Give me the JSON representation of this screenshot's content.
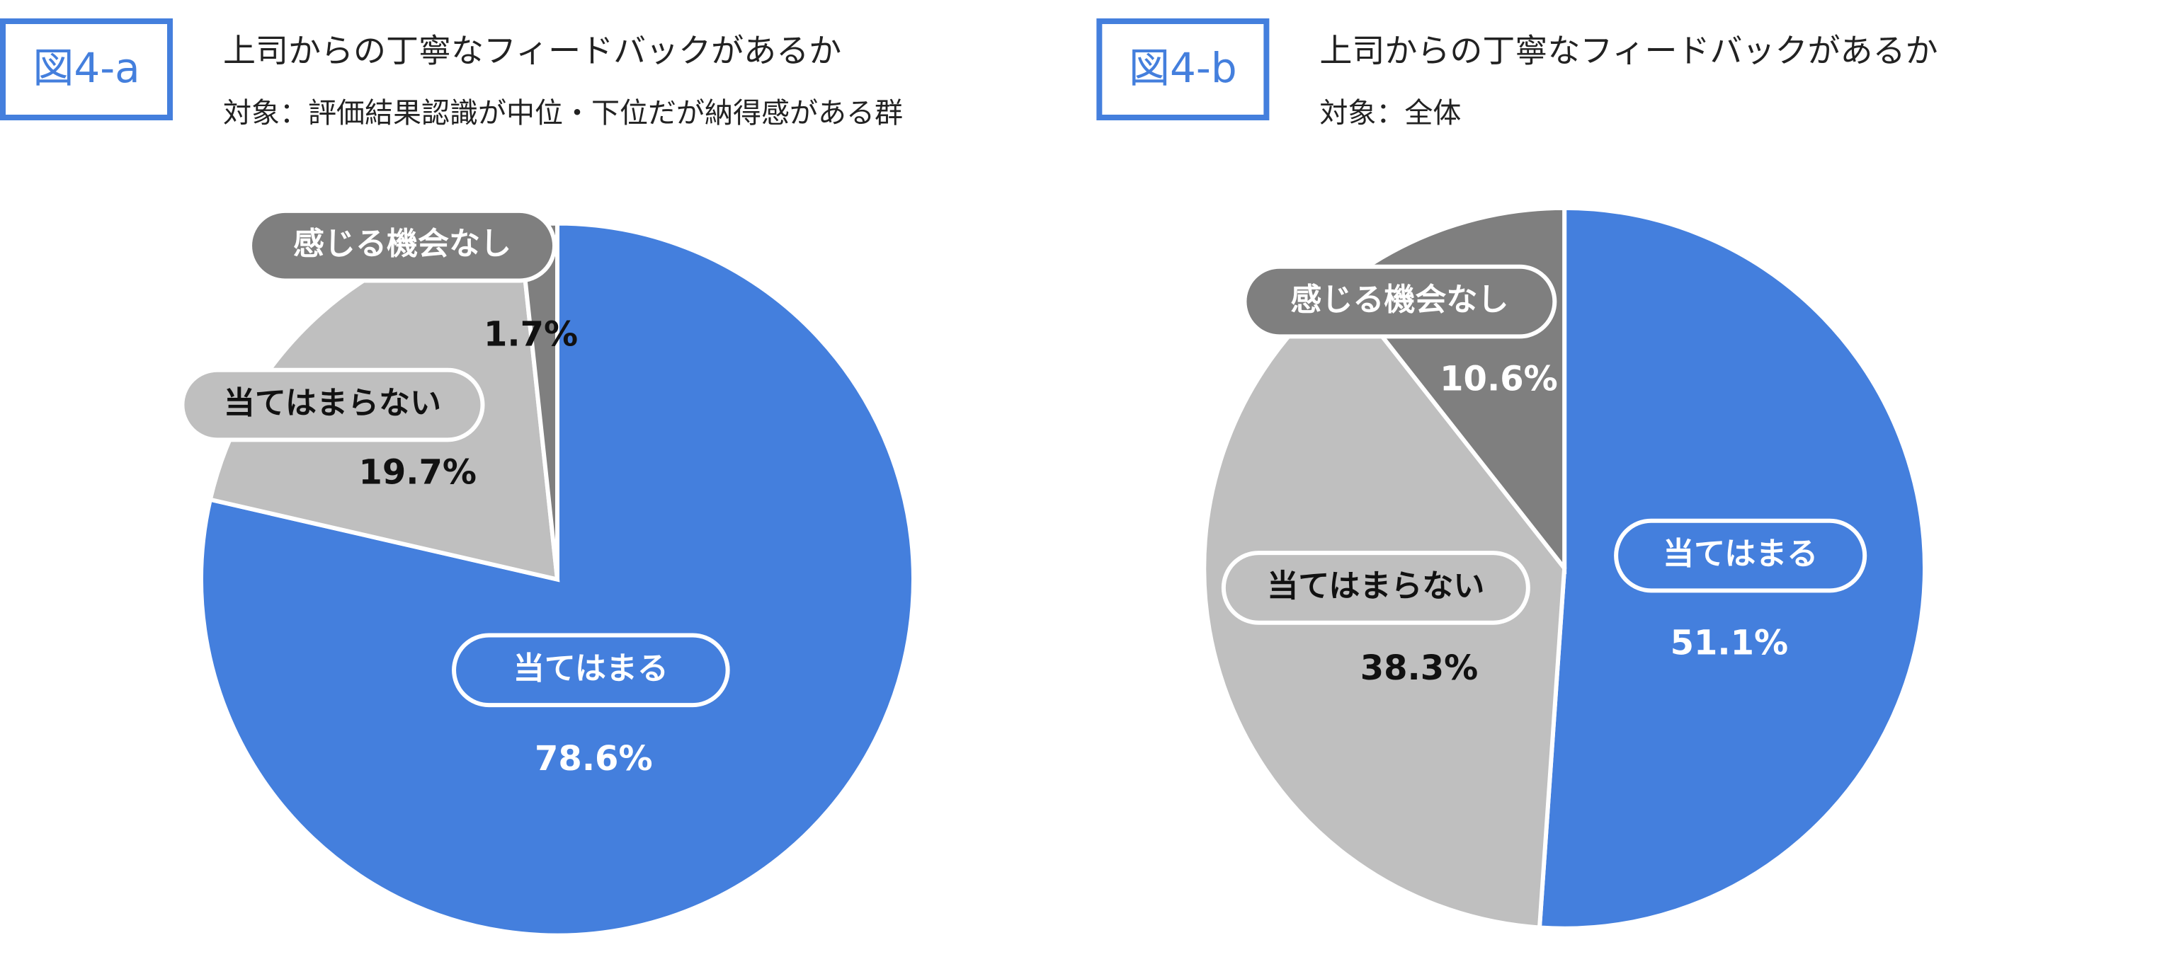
{
  "chart_data": [
    {
      "type": "pie",
      "figure_label": "図4-a",
      "title": "上司からの丁寧なフィードバックがあるか",
      "subtitle": "対象：評価結果認識が中位・下位だが納得感がある群",
      "categories": [
        "当てはまる",
        "当てはまらない",
        "感じる機会なし"
      ],
      "values": [
        78.6,
        19.7,
        1.7
      ],
      "value_labels": [
        "78.6%",
        "19.7%",
        "1.7%"
      ],
      "colors": [
        "#447fdd",
        "#bfbfbf",
        "#7f7f7f"
      ]
    },
    {
      "type": "pie",
      "figure_label": "図4-b",
      "title": "上司からの丁寧なフィードバックがあるか",
      "subtitle": "対象：全体",
      "categories": [
        "当てはまる",
        "当てはまらない",
        "感じる機会なし"
      ],
      "values": [
        51.1,
        38.3,
        10.6
      ],
      "value_labels": [
        "51.1%",
        "38.3%",
        "10.6%"
      ],
      "colors": [
        "#447fdd",
        "#bfbfbf",
        "#7f7f7f"
      ]
    }
  ]
}
